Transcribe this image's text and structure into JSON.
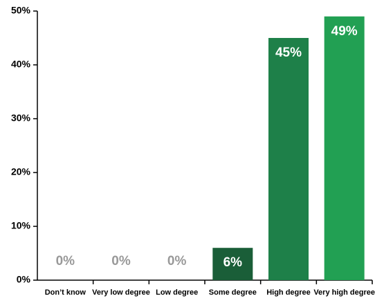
{
  "chart_data": {
    "type": "bar",
    "categories": [
      "Don’t know",
      "Very low degree",
      "Low degree",
      "Some degree",
      "High degree",
      "Very high degree"
    ],
    "values": [
      0,
      0,
      0,
      6,
      45,
      49
    ],
    "value_labels": [
      "0%",
      "0%",
      "0%",
      "6%",
      "45%",
      "49%"
    ],
    "colors": [
      "#1a5e38",
      "#1a5e38",
      "#1a5e38",
      "#1a5e38",
      "#1e8049",
      "#22a053"
    ],
    "ylim": [
      0,
      50
    ],
    "yticks": [
      {
        "value": 0,
        "label": "0%"
      },
      {
        "value": 10,
        "label": "10%"
      },
      {
        "value": 20,
        "label": "20%"
      },
      {
        "value": 30,
        "label": "30%"
      },
      {
        "value": 40,
        "label": "40%"
      },
      {
        "value": 50,
        "label": "50%"
      }
    ],
    "grid": false
  }
}
